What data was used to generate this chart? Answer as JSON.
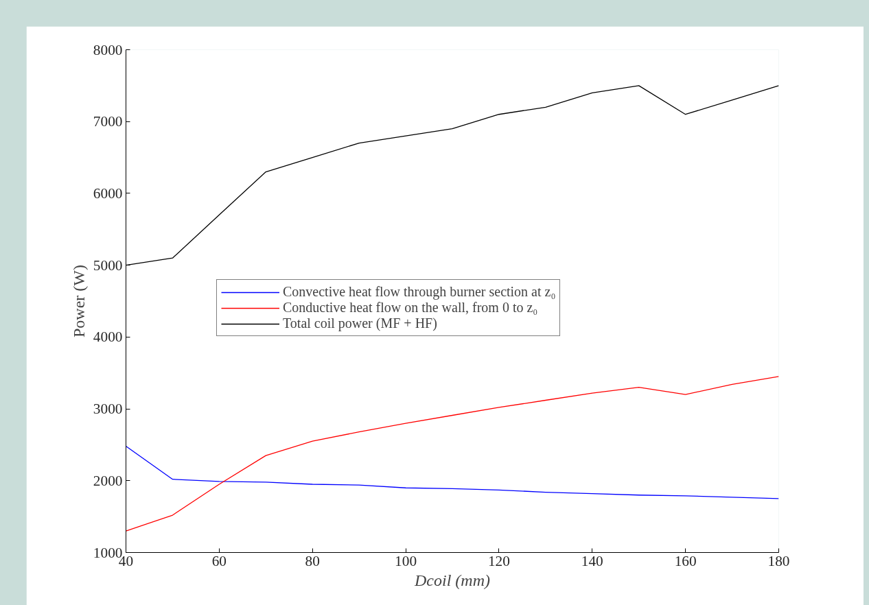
{
  "chart_data": {
    "type": "line",
    "xlabel": "Dcoil (mm)",
    "ylabel": "Power (W)",
    "x": [
      40,
      50,
      60,
      70,
      80,
      90,
      100,
      110,
      120,
      130,
      140,
      150,
      160,
      170,
      180
    ],
    "xlim": [
      40,
      180
    ],
    "xticks": [
      40,
      60,
      80,
      100,
      120,
      140,
      160,
      180
    ],
    "ylim": [
      1000,
      8000
    ],
    "yticks": [
      1000,
      2000,
      3000,
      4000,
      5000,
      6000,
      7000,
      8000
    ],
    "grid": false,
    "legend": "center",
    "marker": "none",
    "line_style": "solid",
    "series": [
      {
        "name": "Convective heat flow through burner section at z₀",
        "color": "#0000ff",
        "values": [
          2480,
          2020,
          1990,
          1980,
          1950,
          1940,
          1900,
          1890,
          1870,
          1840,
          1820,
          1800,
          1790,
          1770,
          1750
        ]
      },
      {
        "name": "Conductive heat flow on the wall, from 0 to z₀",
        "color": "#ff0000",
        "values": [
          1300,
          1520,
          1950,
          2350,
          2550,
          2680,
          2800,
          2910,
          3020,
          3120,
          3220,
          3300,
          3200,
          3340,
          3450
        ]
      },
      {
        "name": "Total coil power (MF + HF)",
        "color": "#000000",
        "values": [
          5000,
          5100,
          5700,
          6300,
          6500,
          6700,
          6800,
          6900,
          7100,
          7200,
          7400,
          7500,
          7100,
          7300,
          7500
        ]
      }
    ]
  }
}
